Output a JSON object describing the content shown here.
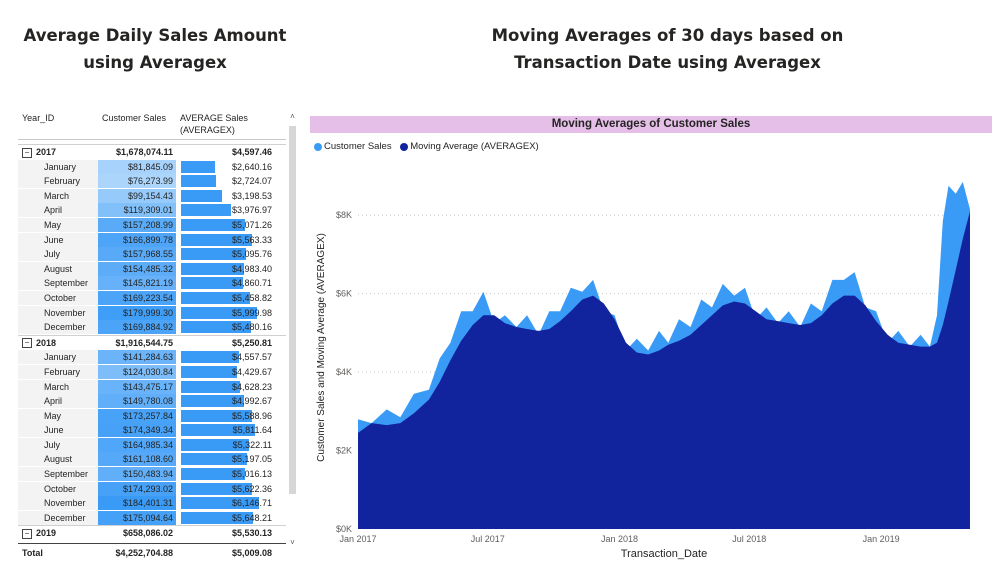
{
  "left_title": [
    "Average Daily Sales Amount",
    "using Averagex"
  ],
  "right_title": [
    "Moving Averages of 30 days based on",
    "Transaction Date using Averagex"
  ],
  "matrix": {
    "headers": {
      "year": "Year_ID",
      "customer_sales": "Customer Sales",
      "avg_line1": "AVERAGE Sales",
      "avg_line2": "(AVERAGEX)"
    },
    "rows": [
      {
        "type": "year",
        "label": "2017",
        "cs": "$1,678,074.11",
        "avg": "$4,597.46",
        "toggle": "⊟"
      },
      {
        "type": "month",
        "label": "January",
        "cs": "$81,845.09",
        "avg": "$2,640.16",
        "cs_num": 81845.09,
        "avg_num": 2640.16
      },
      {
        "type": "month",
        "label": "February",
        "cs": "$76,273.99",
        "avg": "$2,724.07",
        "cs_num": 76273.99,
        "avg_num": 2724.07
      },
      {
        "type": "month",
        "label": "March",
        "cs": "$99,154.43",
        "avg": "$3,198.53",
        "cs_num": 99154.43,
        "avg_num": 3198.53
      },
      {
        "type": "month",
        "label": "April",
        "cs": "$119,309.01",
        "avg": "$3,976.97",
        "cs_num": 119309.01,
        "avg_num": 3976.97
      },
      {
        "type": "month",
        "label": "May",
        "cs": "$157,208.99",
        "avg": "$5,071.26",
        "cs_num": 157208.99,
        "avg_num": 5071.26
      },
      {
        "type": "month",
        "label": "June",
        "cs": "$166,899.78",
        "avg": "$5,563.33",
        "cs_num": 166899.78,
        "avg_num": 5563.33
      },
      {
        "type": "month",
        "label": "July",
        "cs": "$157,968.55",
        "avg": "$5,095.76",
        "cs_num": 157968.55,
        "avg_num": 5095.76
      },
      {
        "type": "month",
        "label": "August",
        "cs": "$154,485.32",
        "avg": "$4,983.40",
        "cs_num": 154485.32,
        "avg_num": 4983.4
      },
      {
        "type": "month",
        "label": "September",
        "cs": "$145,821.19",
        "avg": "$4,860.71",
        "cs_num": 145821.19,
        "avg_num": 4860.71
      },
      {
        "type": "month",
        "label": "October",
        "cs": "$169,223.54",
        "avg": "$5,458.82",
        "cs_num": 169223.54,
        "avg_num": 5458.82
      },
      {
        "type": "month",
        "label": "November",
        "cs": "$179,999.30",
        "avg": "$5,999.98",
        "cs_num": 179999.3,
        "avg_num": 5999.98
      },
      {
        "type": "month",
        "label": "December",
        "cs": "$169,884.92",
        "avg": "$5,480.16",
        "cs_num": 169884.92,
        "avg_num": 5480.16
      },
      {
        "type": "year",
        "label": "2018",
        "cs": "$1,916,544.75",
        "avg": "$5,250.81",
        "toggle": "⊟"
      },
      {
        "type": "month",
        "label": "January",
        "cs": "$141,284.63",
        "avg": "$4,557.57",
        "cs_num": 141284.63,
        "avg_num": 4557.57
      },
      {
        "type": "month",
        "label": "February",
        "cs": "$124,030.84",
        "avg": "$4,429.67",
        "cs_num": 124030.84,
        "avg_num": 4429.67
      },
      {
        "type": "month",
        "label": "March",
        "cs": "$143,475.17",
        "avg": "$4,628.23",
        "cs_num": 143475.17,
        "avg_num": 4628.23
      },
      {
        "type": "month",
        "label": "April",
        "cs": "$149,780.08",
        "avg": "$4,992.67",
        "cs_num": 149780.08,
        "avg_num": 4992.67
      },
      {
        "type": "month",
        "label": "May",
        "cs": "$173,257.84",
        "avg": "$5,588.96",
        "cs_num": 173257.84,
        "avg_num": 5588.96
      },
      {
        "type": "month",
        "label": "June",
        "cs": "$174,349.34",
        "avg": "$5,811.64",
        "cs_num": 174349.34,
        "avg_num": 5811.64
      },
      {
        "type": "month",
        "label": "July",
        "cs": "$164,985.34",
        "avg": "$5,322.11",
        "cs_num": 164985.34,
        "avg_num": 5322.11
      },
      {
        "type": "month",
        "label": "August",
        "cs": "$161,108.60",
        "avg": "$5,197.05",
        "cs_num": 161108.6,
        "avg_num": 5197.05
      },
      {
        "type": "month",
        "label": "September",
        "cs": "$150,483.94",
        "avg": "$5,016.13",
        "cs_num": 150483.94,
        "avg_num": 5016.13
      },
      {
        "type": "month",
        "label": "October",
        "cs": "$174,293.02",
        "avg": "$5,622.36",
        "cs_num": 174293.02,
        "avg_num": 5622.36
      },
      {
        "type": "month",
        "label": "November",
        "cs": "$184,401.31",
        "avg": "$6,146.71",
        "cs_num": 184401.31,
        "avg_num": 6146.71
      },
      {
        "type": "month",
        "label": "December",
        "cs": "$175,094.64",
        "avg": "$5,648.21",
        "cs_num": 175094.64,
        "avg_num": 5648.21
      },
      {
        "type": "year",
        "label": "2019",
        "cs": "$658,086.02",
        "avg": "$5,530.13",
        "toggle": "⊟"
      }
    ],
    "total": {
      "label": "Total",
      "cs": "$4,252,704.88",
      "avg": "$5,009.08"
    },
    "bar_max": 6146.71,
    "scroll_up": "˄",
    "scroll_down": "˅"
  },
  "chart": {
    "banner": "Moving Averages of Customer Sales",
    "legend": [
      {
        "label": "Customer Sales",
        "color": "#3a9bf7"
      },
      {
        "label": "Moving Average (AVERAGEX)",
        "color": "#12239e"
      }
    ]
  },
  "chart_data": {
    "type": "area",
    "title": "Moving Averages of Customer Sales",
    "xlabel": "Transaction_Date",
    "ylabel": "Customer Sales and Moving Average (AVERAGEX)",
    "x_ticks": [
      "Jan 2017",
      "Jul 2017",
      "Jan 2018",
      "Jul 2018",
      "Jan 2019"
    ],
    "y_ticks": [
      "$0K",
      "$2K",
      "$4K",
      "$6K",
      "$8K"
    ],
    "ylim": [
      0,
      9000
    ],
    "x_range": [
      "2017-01-01",
      "2019-05-05"
    ],
    "grid": true,
    "legend_position": "top-left",
    "series": [
      {
        "name": "Customer Sales",
        "color": "#3a9bf7",
        "points": [
          [
            "2017-01-01",
            2550
          ],
          [
            "2017-01-20",
            2850
          ],
          [
            "2017-02-10",
            2800
          ],
          [
            "2017-03-01",
            3000
          ],
          [
            "2017-03-20",
            3200
          ],
          [
            "2017-04-10",
            3700
          ],
          [
            "2017-04-25",
            4100
          ],
          [
            "2017-05-10",
            4900
          ],
          [
            "2017-05-25",
            5300
          ],
          [
            "2017-06-10",
            5700
          ],
          [
            "2017-06-25",
            5800
          ],
          [
            "2017-07-10",
            5400
          ],
          [
            "2017-07-25",
            5200
          ],
          [
            "2017-08-10",
            5300
          ],
          [
            "2017-08-25",
            5200
          ],
          [
            "2017-09-10",
            5100
          ],
          [
            "2017-09-25",
            5300
          ],
          [
            "2017-10-10",
            5700
          ],
          [
            "2017-10-25",
            5900
          ],
          [
            "2017-11-10",
            6200
          ],
          [
            "2017-11-25",
            6100
          ],
          [
            "2017-12-10",
            5700
          ],
          [
            "2017-12-25",
            5200
          ],
          [
            "2018-01-10",
            4700
          ],
          [
            "2018-01-25",
            4600
          ],
          [
            "2018-02-10",
            4700
          ],
          [
            "2018-02-25",
            4800
          ],
          [
            "2018-03-10",
            4900
          ],
          [
            "2018-03-25",
            5100
          ],
          [
            "2018-04-10",
            5300
          ],
          [
            "2018-04-25",
            5600
          ],
          [
            "2018-05-10",
            5800
          ],
          [
            "2018-05-25",
            6000
          ],
          [
            "2018-06-10",
            6100
          ],
          [
            "2018-06-25",
            5900
          ],
          [
            "2018-07-10",
            5500
          ],
          [
            "2018-07-25",
            5400
          ],
          [
            "2018-08-10",
            5400
          ],
          [
            "2018-08-25",
            5300
          ],
          [
            "2018-09-10",
            5300
          ],
          [
            "2018-09-25",
            5500
          ],
          [
            "2018-10-10",
            5700
          ],
          [
            "2018-10-25",
            6100
          ],
          [
            "2018-11-10",
            6500
          ],
          [
            "2018-11-25",
            6300
          ],
          [
            "2018-12-10",
            5800
          ],
          [
            "2018-12-25",
            5300
          ],
          [
            "2019-01-10",
            4900
          ],
          [
            "2019-01-25",
            4800
          ],
          [
            "2019-02-10",
            4800
          ],
          [
            "2019-02-25",
            4700
          ],
          [
            "2019-03-10",
            4800
          ],
          [
            "2019-03-20",
            5200
          ],
          [
            "2019-03-28",
            8000
          ],
          [
            "2019-04-05",
            8500
          ],
          [
            "2019-04-15",
            8700
          ],
          [
            "2019-04-25",
            8600
          ],
          [
            "2019-05-05",
            8300
          ]
        ]
      },
      {
        "name": "Moving Average (AVERAGEX)",
        "color": "#12239e",
        "points": [
          [
            "2017-01-01",
            2450
          ],
          [
            "2017-01-20",
            2700
          ],
          [
            "2017-02-10",
            2650
          ],
          [
            "2017-03-01",
            2700
          ],
          [
            "2017-03-20",
            2950
          ],
          [
            "2017-04-10",
            3300
          ],
          [
            "2017-04-25",
            3750
          ],
          [
            "2017-05-10",
            4300
          ],
          [
            "2017-05-25",
            4800
          ],
          [
            "2017-06-10",
            5200
          ],
          [
            "2017-06-25",
            5450
          ],
          [
            "2017-07-10",
            5450
          ],
          [
            "2017-07-25",
            5250
          ],
          [
            "2017-08-10",
            5150
          ],
          [
            "2017-08-25",
            5100
          ],
          [
            "2017-09-10",
            5050
          ],
          [
            "2017-09-25",
            5100
          ],
          [
            "2017-10-10",
            5300
          ],
          [
            "2017-10-25",
            5550
          ],
          [
            "2017-11-10",
            5850
          ],
          [
            "2017-11-25",
            5950
          ],
          [
            "2017-12-10",
            5750
          ],
          [
            "2017-12-25",
            5350
          ],
          [
            "2018-01-10",
            4750
          ],
          [
            "2018-01-25",
            4500
          ],
          [
            "2018-02-10",
            4450
          ],
          [
            "2018-02-25",
            4550
          ],
          [
            "2018-03-10",
            4700
          ],
          [
            "2018-03-25",
            4800
          ],
          [
            "2018-04-10",
            4950
          ],
          [
            "2018-04-25",
            5200
          ],
          [
            "2018-05-10",
            5450
          ],
          [
            "2018-05-25",
            5700
          ],
          [
            "2018-06-10",
            5800
          ],
          [
            "2018-06-25",
            5750
          ],
          [
            "2018-07-10",
            5550
          ],
          [
            "2018-07-25",
            5350
          ],
          [
            "2018-08-10",
            5300
          ],
          [
            "2018-08-25",
            5250
          ],
          [
            "2018-09-10",
            5200
          ],
          [
            "2018-09-25",
            5250
          ],
          [
            "2018-10-10",
            5450
          ],
          [
            "2018-10-25",
            5750
          ],
          [
            "2018-11-10",
            5950
          ],
          [
            "2018-11-25",
            5950
          ],
          [
            "2018-12-10",
            5700
          ],
          [
            "2018-12-25",
            5300
          ],
          [
            "2019-01-10",
            4950
          ],
          [
            "2019-01-25",
            4750
          ],
          [
            "2019-02-10",
            4700
          ],
          [
            "2019-02-25",
            4650
          ],
          [
            "2019-03-10",
            4650
          ],
          [
            "2019-03-20",
            4750
          ],
          [
            "2019-03-28",
            5200
          ],
          [
            "2019-04-05",
            5800
          ],
          [
            "2019-04-15",
            6600
          ],
          [
            "2019-04-25",
            7400
          ],
          [
            "2019-05-05",
            8100
          ]
        ]
      }
    ]
  }
}
